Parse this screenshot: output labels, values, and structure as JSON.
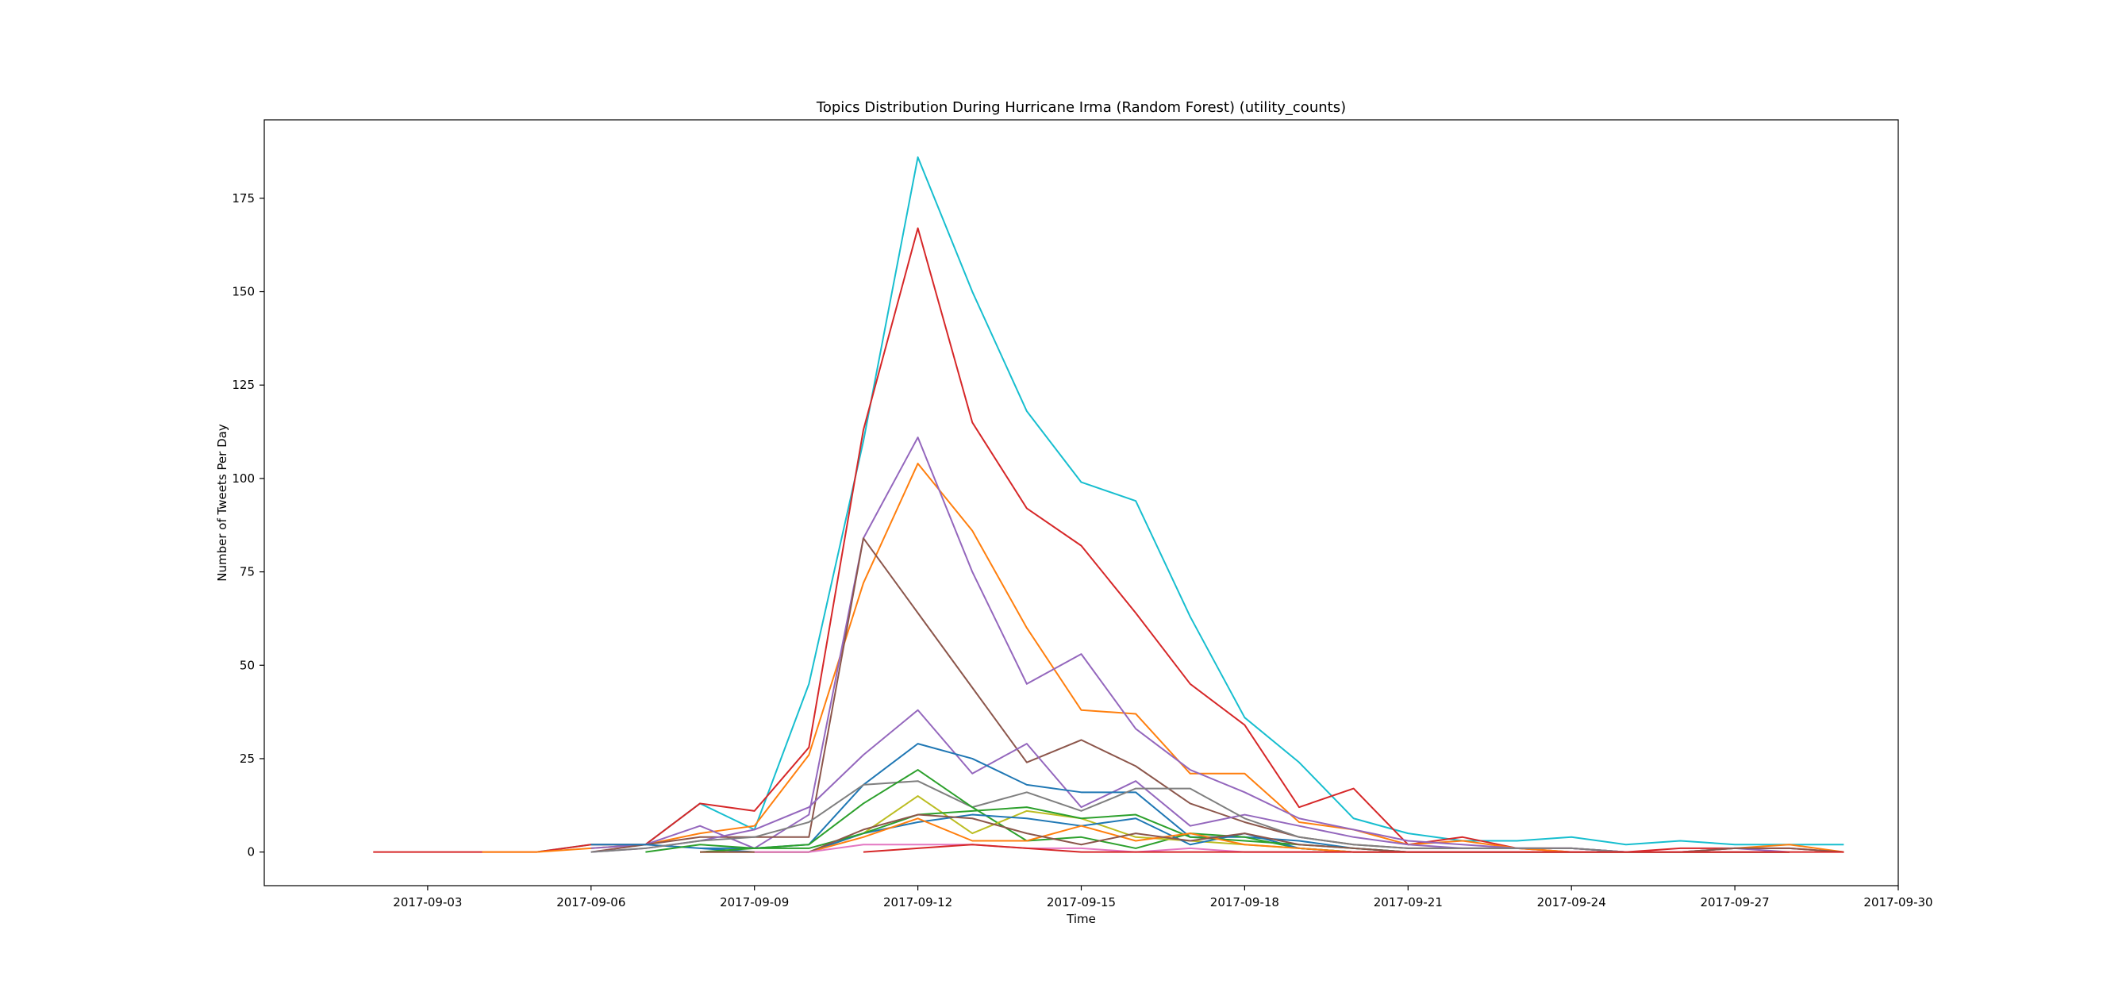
{
  "chart_data": {
    "type": "line",
    "title": "Topics Distribution During Hurricane Irma (Random Forest) (utility_counts)",
    "xlabel": "Time",
    "ylabel": "Number of Tweets Per Day",
    "xlim": [
      "2017-08-31",
      "2017-09-30"
    ],
    "ylim": [
      -9,
      196
    ],
    "xticks": [
      "2017-09-03",
      "2017-09-06",
      "2017-09-09",
      "2017-09-12",
      "2017-09-15",
      "2017-09-18",
      "2017-09-21",
      "2017-09-24",
      "2017-09-27",
      "2017-09-30"
    ],
    "yticks": [
      0,
      25,
      50,
      75,
      100,
      125,
      150,
      175
    ],
    "grid": false,
    "series": [
      {
        "color": "#17becf",
        "x": [
          "2017-09-05",
          "2017-09-06",
          "2017-09-07",
          "2017-09-08",
          "2017-09-09",
          "2017-09-10",
          "2017-09-11",
          "2017-09-12",
          "2017-09-13",
          "2017-09-14",
          "2017-09-15",
          "2017-09-16",
          "2017-09-17",
          "2017-09-18",
          "2017-09-19",
          "2017-09-20",
          "2017-09-21",
          "2017-09-22",
          "2017-09-23",
          "2017-09-24",
          "2017-09-25",
          "2017-09-26",
          "2017-09-27",
          "2017-09-28",
          "2017-09-29"
        ],
        "y": [
          0,
          2,
          2,
          13,
          6,
          45,
          110,
          186,
          150,
          118,
          99,
          94,
          63,
          36,
          24,
          9,
          5,
          3,
          3,
          4,
          2,
          3,
          2,
          2,
          2
        ]
      },
      {
        "color": "#d62728",
        "x": [
          "2017-09-02",
          "2017-09-03",
          "2017-09-04",
          "2017-09-05",
          "2017-09-06",
          "2017-09-07",
          "2017-09-08",
          "2017-09-09",
          "2017-09-10",
          "2017-09-11",
          "2017-09-12",
          "2017-09-13",
          "2017-09-14",
          "2017-09-15",
          "2017-09-16",
          "2017-09-17",
          "2017-09-18",
          "2017-09-19",
          "2017-09-20",
          "2017-09-21",
          "2017-09-22",
          "2017-09-23",
          "2017-09-24",
          "2017-09-25",
          "2017-09-26",
          "2017-09-27",
          "2017-09-28",
          "2017-09-29"
        ],
        "y": [
          0,
          0,
          0,
          0,
          2,
          2,
          13,
          11,
          28,
          113,
          167,
          115,
          92,
          82,
          64,
          45,
          34,
          12,
          17,
          2,
          4,
          1,
          0,
          0,
          1,
          1,
          1,
          0
        ]
      },
      {
        "color": "#ff7f0e",
        "x": [
          "2017-09-04",
          "2017-09-05",
          "2017-09-06",
          "2017-09-07",
          "2017-09-08",
          "2017-09-09",
          "2017-09-10",
          "2017-09-11",
          "2017-09-12",
          "2017-09-13",
          "2017-09-14",
          "2017-09-15",
          "2017-09-16",
          "2017-09-17",
          "2017-09-18",
          "2017-09-19",
          "2017-09-20",
          "2017-09-21",
          "2017-09-22",
          "2017-09-23",
          "2017-09-24",
          "2017-09-25",
          "2017-09-26",
          "2017-09-27",
          "2017-09-28",
          "2017-09-29"
        ],
        "y": [
          0,
          0,
          1,
          2,
          5,
          7,
          26,
          72,
          104,
          86,
          60,
          38,
          37,
          21,
          21,
          8,
          6,
          2,
          3,
          1,
          0,
          0,
          0,
          1,
          2,
          0
        ]
      },
      {
        "color": "#9467bd",
        "x": [
          "2017-09-06",
          "2017-09-07",
          "2017-09-08",
          "2017-09-09",
          "2017-09-10",
          "2017-09-11",
          "2017-09-12",
          "2017-09-13",
          "2017-09-14",
          "2017-09-15",
          "2017-09-16",
          "2017-09-17",
          "2017-09-18",
          "2017-09-19",
          "2017-09-20",
          "2017-09-21",
          "2017-09-22",
          "2017-09-23",
          "2017-09-24",
          "2017-09-25",
          "2017-09-26",
          "2017-09-27",
          "2017-09-28"
        ],
        "y": [
          1,
          2,
          7,
          1,
          10,
          84,
          111,
          75,
          45,
          53,
          33,
          22,
          16,
          9,
          6,
          3,
          2,
          1,
          1,
          0,
          0,
          1,
          0
        ]
      },
      {
        "color": "#8c564b",
        "x": [
          "2017-09-06",
          "2017-09-07",
          "2017-09-08",
          "2017-09-09",
          "2017-09-10",
          "2017-09-11",
          "2017-09-12",
          "2017-09-13",
          "2017-09-14",
          "2017-09-15",
          "2017-09-16",
          "2017-09-17",
          "2017-09-18",
          "2017-09-19",
          "2017-09-20",
          "2017-09-21",
          "2017-09-22",
          "2017-09-23",
          "2017-09-24",
          "2017-09-25",
          "2017-09-26",
          "2017-09-27",
          "2017-09-28",
          "2017-09-29"
        ],
        "y": [
          0,
          2,
          4,
          4,
          4,
          84,
          64,
          44,
          24,
          30,
          23,
          13,
          8,
          4,
          2,
          1,
          1,
          1,
          1,
          0,
          0,
          1,
          1,
          0
        ]
      },
      {
        "color": "#9467bd",
        "x": [
          "2017-09-06",
          "2017-09-07",
          "2017-09-08",
          "2017-09-09",
          "2017-09-10",
          "2017-09-11",
          "2017-09-12",
          "2017-09-13",
          "2017-09-14",
          "2017-09-15",
          "2017-09-16",
          "2017-09-17",
          "2017-09-18",
          "2017-09-19",
          "2017-09-20",
          "2017-09-21",
          "2017-09-22",
          "2017-09-23",
          "2017-09-24",
          "2017-09-25",
          "2017-09-26",
          "2017-09-27",
          "2017-09-28"
        ],
        "y": [
          0,
          1,
          3,
          6,
          12,
          26,
          38,
          21,
          29,
          12,
          19,
          7,
          10,
          7,
          4,
          2,
          1,
          1,
          1,
          0,
          0,
          0,
          0
        ]
      },
      {
        "color": "#1f77b4",
        "x": [
          "2017-09-06",
          "2017-09-07",
          "2017-09-08",
          "2017-09-09",
          "2017-09-10",
          "2017-09-11",
          "2017-09-12",
          "2017-09-13",
          "2017-09-14",
          "2017-09-15",
          "2017-09-16",
          "2017-09-17",
          "2017-09-18",
          "2017-09-19",
          "2017-09-20",
          "2017-09-21",
          "2017-09-22",
          "2017-09-23",
          "2017-09-24",
          "2017-09-25",
          "2017-09-26",
          "2017-09-27",
          "2017-09-28"
        ],
        "y": [
          2,
          2,
          1,
          1,
          2,
          18,
          29,
          25,
          18,
          16,
          16,
          4,
          4,
          3,
          1,
          0,
          0,
          0,
          0,
          0,
          0,
          0,
          0
        ]
      },
      {
        "color": "#7f7f7f",
        "x": [
          "2017-09-06",
          "2017-09-07",
          "2017-09-08",
          "2017-09-09",
          "2017-09-10",
          "2017-09-11",
          "2017-09-12",
          "2017-09-13",
          "2017-09-14",
          "2017-09-15",
          "2017-09-16",
          "2017-09-17",
          "2017-09-18",
          "2017-09-19",
          "2017-09-20",
          "2017-09-21",
          "2017-09-22",
          "2017-09-23",
          "2017-09-24",
          "2017-09-25",
          "2017-09-26",
          "2017-09-27",
          "2017-09-28"
        ],
        "y": [
          0,
          1,
          3,
          4,
          8,
          18,
          19,
          12,
          16,
          11,
          17,
          17,
          9,
          4,
          2,
          1,
          1,
          1,
          1,
          0,
          0,
          0,
          0
        ]
      },
      {
        "color": "#2ca02c",
        "x": [
          "2017-09-07",
          "2017-09-08",
          "2017-09-09",
          "2017-09-10",
          "2017-09-11",
          "2017-09-12",
          "2017-09-13",
          "2017-09-14",
          "2017-09-15",
          "2017-09-16",
          "2017-09-17",
          "2017-09-18",
          "2017-09-19",
          "2017-09-20",
          "2017-09-21",
          "2017-09-22",
          "2017-09-23",
          "2017-09-24",
          "2017-09-25",
          "2017-09-26",
          "2017-09-27",
          "2017-09-28"
        ],
        "y": [
          0,
          2,
          1,
          2,
          13,
          22,
          12,
          3,
          4,
          1,
          5,
          4,
          1,
          0,
          0,
          0,
          0,
          0,
          0,
          0,
          0,
          0
        ]
      },
      {
        "color": "#bcbd22",
        "x": [
          "2017-09-08",
          "2017-09-09",
          "2017-09-10",
          "2017-09-11",
          "2017-09-12",
          "2017-09-13",
          "2017-09-14",
          "2017-09-15",
          "2017-09-16",
          "2017-09-17",
          "2017-09-18",
          "2017-09-19",
          "2017-09-20",
          "2017-09-21",
          "2017-09-22",
          "2017-09-23",
          "2017-09-24",
          "2017-09-25",
          "2017-09-26",
          "2017-09-27",
          "2017-09-28"
        ],
        "y": [
          0,
          0,
          0,
          5,
          15,
          5,
          11,
          9,
          4,
          3,
          2,
          1,
          0,
          0,
          0,
          0,
          0,
          0,
          0,
          0,
          0
        ]
      },
      {
        "color": "#1f77b4",
        "x": [
          "2017-09-08",
          "2017-09-09",
          "2017-09-10",
          "2017-09-11",
          "2017-09-12",
          "2017-09-13",
          "2017-09-14",
          "2017-09-15",
          "2017-09-16",
          "2017-09-17",
          "2017-09-18",
          "2017-09-19",
          "2017-09-20",
          "2017-09-21",
          "2017-09-22",
          "2017-09-23",
          "2017-09-24",
          "2017-09-25",
          "2017-09-26",
          "2017-09-27",
          "2017-09-28"
        ],
        "y": [
          1,
          0,
          0,
          5,
          8,
          10,
          9,
          7,
          9,
          2,
          5,
          1,
          0,
          0,
          0,
          0,
          0,
          0,
          0,
          0,
          0
        ]
      },
      {
        "color": "#2ca02c",
        "x": [
          "2017-09-08",
          "2017-09-09",
          "2017-09-10",
          "2017-09-11",
          "2017-09-12",
          "2017-09-13",
          "2017-09-14",
          "2017-09-15",
          "2017-09-16",
          "2017-09-17",
          "2017-09-18",
          "2017-09-19",
          "2017-09-20",
          "2017-09-21",
          "2017-09-22",
          "2017-09-23",
          "2017-09-24",
          "2017-09-25",
          "2017-09-26",
          "2017-09-27",
          "2017-09-28"
        ],
        "y": [
          0,
          1,
          1,
          5,
          10,
          11,
          12,
          9,
          10,
          4,
          3,
          2,
          1,
          0,
          0,
          0,
          0,
          0,
          0,
          0,
          0
        ]
      },
      {
        "color": "#ff7f0e",
        "x": [
          "2017-09-08",
          "2017-09-09",
          "2017-09-10",
          "2017-09-11",
          "2017-09-12",
          "2017-09-13",
          "2017-09-14",
          "2017-09-15",
          "2017-09-16",
          "2017-09-17",
          "2017-09-18",
          "2017-09-19",
          "2017-09-20",
          "2017-09-21",
          "2017-09-22",
          "2017-09-23",
          "2017-09-24",
          "2017-09-25",
          "2017-09-26",
          "2017-09-27",
          "2017-09-28"
        ],
        "y": [
          0,
          0,
          0,
          4,
          9,
          3,
          3,
          7,
          3,
          5,
          2,
          1,
          0,
          0,
          0,
          0,
          0,
          0,
          0,
          0,
          0
        ]
      },
      {
        "color": "#8c564b",
        "x": [
          "2017-09-08",
          "2017-09-09",
          "2017-09-10",
          "2017-09-11",
          "2017-09-12",
          "2017-09-13",
          "2017-09-14",
          "2017-09-15",
          "2017-09-16",
          "2017-09-17",
          "2017-09-18",
          "2017-09-19",
          "2017-09-20",
          "2017-09-21",
          "2017-09-22",
          "2017-09-23",
          "2017-09-24",
          "2017-09-25",
          "2017-09-26",
          "2017-09-27",
          "2017-09-28"
        ],
        "y": [
          0,
          0,
          0,
          6,
          10,
          9,
          5,
          2,
          5,
          3,
          5,
          2,
          1,
          0,
          0,
          0,
          0,
          0,
          0,
          0,
          0
        ]
      },
      {
        "color": "#e377c2",
        "x": [
          "2017-09-09",
          "2017-09-10",
          "2017-09-11",
          "2017-09-12",
          "2017-09-13",
          "2017-09-14",
          "2017-09-15",
          "2017-09-16",
          "2017-09-17",
          "2017-09-18",
          "2017-09-19",
          "2017-09-20",
          "2017-09-21",
          "2017-09-22",
          "2017-09-23",
          "2017-09-24",
          "2017-09-25",
          "2017-09-26",
          "2017-09-27",
          "2017-09-28"
        ],
        "y": [
          0,
          0,
          2,
          2,
          2,
          1,
          1,
          0,
          1,
          0,
          0,
          0,
          0,
          0,
          0,
          0,
          0,
          0,
          0,
          0
        ]
      },
      {
        "color": "#d62728",
        "x": [
          "2017-09-11",
          "2017-09-12",
          "2017-09-13",
          "2017-09-14",
          "2017-09-15",
          "2017-09-16",
          "2017-09-17",
          "2017-09-18",
          "2017-09-19",
          "2017-09-20",
          "2017-09-21",
          "2017-09-22",
          "2017-09-23",
          "2017-09-24",
          "2017-09-25",
          "2017-09-26",
          "2017-09-27",
          "2017-09-28",
          "2017-09-29"
        ],
        "y": [
          0,
          1,
          2,
          1,
          0,
          0,
          0,
          0,
          0,
          0,
          0,
          0,
          0,
          0,
          0,
          0,
          0,
          0,
          0
        ]
      }
    ]
  }
}
